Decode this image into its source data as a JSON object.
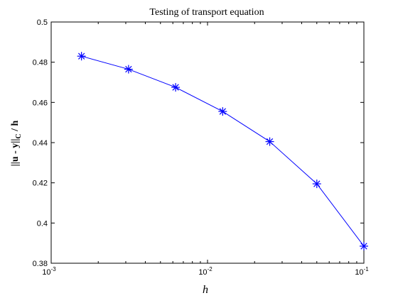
{
  "chart_data": {
    "type": "line",
    "title": "Testing of transport equation",
    "xlabel": "h",
    "ylabel": "||u - y||",
    "ylabel_subscript": "C",
    "ylabel_suffix": " / h",
    "x_scale": "log",
    "xlim": [
      0.001,
      0.1
    ],
    "ylim": [
      0.38,
      0.5
    ],
    "x_ticks": [
      {
        "value": 0.001,
        "base": "10",
        "exp": "-3"
      },
      {
        "value": 0.01,
        "base": "10",
        "exp": "-2"
      },
      {
        "value": 0.1,
        "base": "10",
        "exp": "-1"
      }
    ],
    "y_ticks": [
      "0.38",
      "0.4",
      "0.42",
      "0.44",
      "0.46",
      "0.48",
      "0.5"
    ],
    "grid": false,
    "marker": "asterisk",
    "series": [
      {
        "color": "#0000ff",
        "x": [
          0.0015625,
          0.003125,
          0.00625,
          0.0125,
          0.025,
          0.05,
          0.1
        ],
        "y": [
          0.483,
          0.4765,
          0.4675,
          0.4555,
          0.4405,
          0.4195,
          0.3885
        ]
      }
    ]
  }
}
